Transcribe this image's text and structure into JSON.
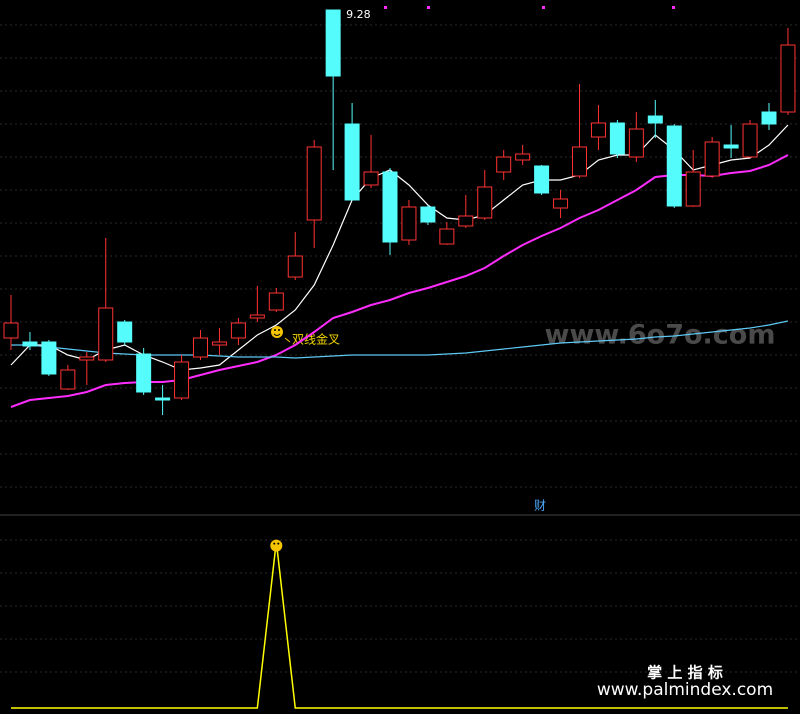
{
  "chart_data": [
    {
      "type": "candlestick",
      "up_color": "#ff3232",
      "down_color": "#54fcfc",
      "ylim": [
        4.38,
        9.38
      ],
      "open": [
        6.0,
        5.96,
        5.96,
        5.49,
        5.78,
        5.78,
        6.16,
        5.84,
        5.4,
        5.4,
        5.81,
        5.93,
        6.0,
        6.2,
        6.28,
        6.61,
        7.18,
        9.28,
        8.14,
        7.53,
        7.66,
        6.98,
        7.31,
        6.94,
        7.12,
        7.2,
        7.66,
        7.78,
        7.72,
        7.3,
        7.62,
        8.01,
        8.15,
        7.81,
        8.22,
        8.12,
        7.32,
        7.62,
        7.93,
        7.81,
        8.26,
        8.26
      ],
      "close": [
        6.15,
        5.92,
        5.64,
        5.68,
        5.81,
        6.3,
        5.96,
        5.46,
        5.38,
        5.76,
        6.0,
        5.96,
        6.15,
        6.23,
        6.45,
        6.82,
        7.91,
        8.62,
        7.38,
        7.66,
        6.96,
        7.31,
        7.16,
        7.09,
        7.22,
        7.51,
        7.81,
        7.84,
        7.45,
        7.39,
        7.91,
        8.15,
        7.84,
        8.09,
        8.15,
        7.32,
        7.66,
        7.96,
        7.9,
        8.14,
        8.14,
        8.93
      ],
      "high": [
        6.43,
        6.06,
        5.98,
        5.73,
        5.86,
        7.0,
        6.18,
        5.9,
        5.53,
        5.83,
        6.08,
        6.1,
        6.2,
        6.52,
        6.5,
        7.06,
        7.98,
        9.28,
        8.35,
        8.03,
        7.7,
        7.38,
        7.33,
        7.16,
        7.43,
        7.68,
        7.88,
        7.93,
        7.73,
        7.48,
        8.54,
        8.33,
        8.18,
        8.26,
        8.38,
        8.14,
        7.88,
        8.01,
        8.13,
        8.18,
        8.35,
        9.1
      ],
      "low": [
        5.88,
        5.88,
        5.62,
        5.48,
        5.53,
        5.76,
        5.93,
        5.43,
        5.23,
        5.38,
        5.78,
        5.83,
        5.93,
        6.16,
        6.26,
        6.58,
        6.9,
        7.68,
        7.38,
        7.5,
        6.83,
        6.93,
        7.13,
        6.93,
        7.1,
        7.18,
        7.58,
        7.73,
        7.43,
        7.2,
        7.6,
        7.88,
        7.8,
        7.76,
        8.0,
        7.3,
        7.31,
        7.6,
        7.8,
        7.8,
        8.08,
        8.23
      ],
      "series": [
        {
          "color": "#ffffff",
          "values": [
            5.73,
            5.93,
            5.93,
            5.83,
            5.78,
            5.88,
            5.93,
            5.83,
            5.76,
            5.68,
            5.7,
            5.73,
            5.88,
            6.03,
            6.13,
            6.28,
            6.53,
            6.93,
            7.38,
            7.6,
            7.68,
            7.53,
            7.33,
            7.2,
            7.18,
            7.23,
            7.38,
            7.53,
            7.58,
            7.58,
            7.63,
            7.78,
            7.83,
            7.83,
            8.03,
            7.88,
            7.68,
            7.73,
            7.78,
            7.8,
            7.93,
            8.13
          ]
        },
        {
          "color": "#ff2cff",
          "values": [
            5.31,
            5.38,
            5.4,
            5.42,
            5.46,
            5.53,
            5.55,
            5.56,
            5.56,
            5.58,
            5.63,
            5.68,
            5.72,
            5.76,
            5.83,
            5.93,
            6.06,
            6.2,
            6.26,
            6.33,
            6.38,
            6.45,
            6.5,
            6.56,
            6.62,
            6.7,
            6.82,
            6.93,
            7.02,
            7.1,
            7.2,
            7.28,
            7.38,
            7.48,
            7.61,
            7.63,
            7.63,
            7.62,
            7.65,
            7.67,
            7.73,
            7.83
          ]
        },
        {
          "color": "#5ec8f5",
          "values": [
            5.93,
            5.93,
            5.91,
            5.89,
            5.87,
            5.85,
            5.84,
            5.83,
            5.83,
            5.83,
            5.83,
            5.82,
            5.81,
            5.81,
            5.81,
            5.8,
            5.81,
            5.82,
            5.83,
            5.83,
            5.83,
            5.83,
            5.83,
            5.84,
            5.85,
            5.87,
            5.89,
            5.91,
            5.93,
            5.95,
            5.96,
            5.97,
            5.98,
            5.99,
            6.01,
            6.02,
            6.04,
            6.06,
            6.08,
            6.1,
            6.13,
            6.17
          ]
        }
      ],
      "annotation": "双线金叉",
      "panel_label": "财"
    },
    {
      "type": "line",
      "ylim": [
        0,
        1.1
      ],
      "series": [
        {
          "color": "#ffff00",
          "values": [
            0,
            0,
            0,
            0,
            0,
            0,
            0,
            0,
            0,
            0,
            0,
            0,
            0,
            0,
            1,
            0,
            0,
            0,
            0,
            0,
            0,
            0,
            0,
            0,
            0,
            0,
            0,
            0,
            0,
            0,
            0,
            0,
            0,
            0,
            0,
            0,
            0,
            0,
            0,
            0,
            0,
            0
          ]
        }
      ]
    }
  ],
  "watermark": "www.6o7o.com",
  "brand": "掌 上 指 标",
  "brand_url": "www.palmindex.com"
}
